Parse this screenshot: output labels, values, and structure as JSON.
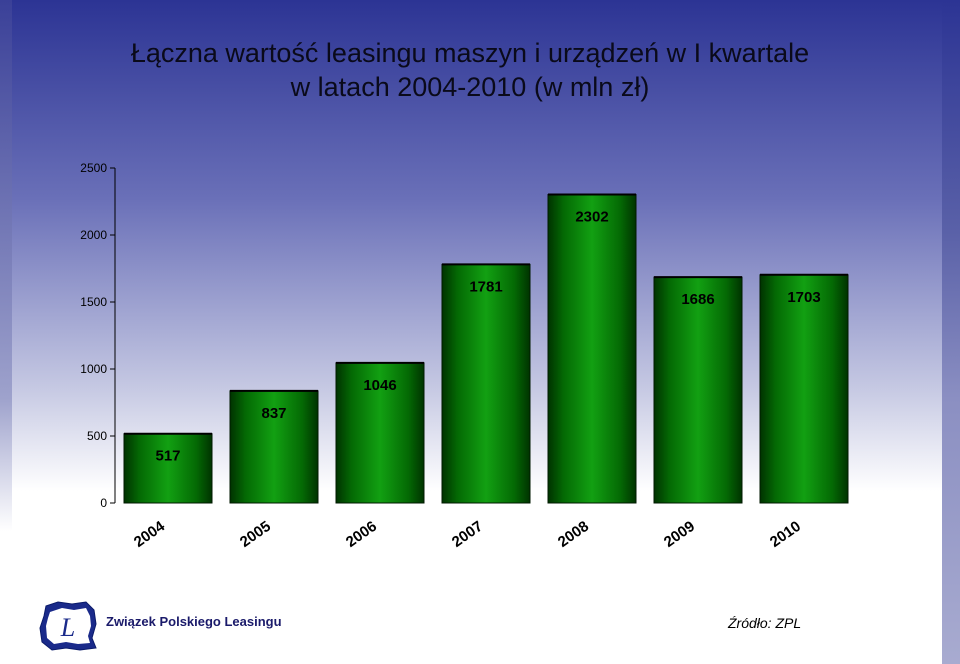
{
  "title_line1": "Łączna wartość leasingu maszyn i urządzeń w I kwartale",
  "title_line2": "w latach 2004-2010 (w mln zł)",
  "chart_data": {
    "type": "bar",
    "categories": [
      "2004",
      "2005",
      "2006",
      "2007",
      "2008",
      "2009",
      "2010"
    ],
    "values": [
      517,
      837,
      1046,
      1781,
      2302,
      1686,
      1703
    ],
    "data_labels": [
      "517",
      "837",
      "1046",
      "1781",
      "2302",
      "1686",
      "1703"
    ],
    "ylim": [
      0,
      2500
    ],
    "yticks": [
      "0",
      "500",
      "1000",
      "1500",
      "2000",
      "2500"
    ],
    "grid": false,
    "legend": "none",
    "bar_color": "#0b8a0b"
  },
  "footer": {
    "logo_letter": "L",
    "org_name": "Związek Polskiego Leasingu",
    "source": "Źródło: ZPL"
  }
}
